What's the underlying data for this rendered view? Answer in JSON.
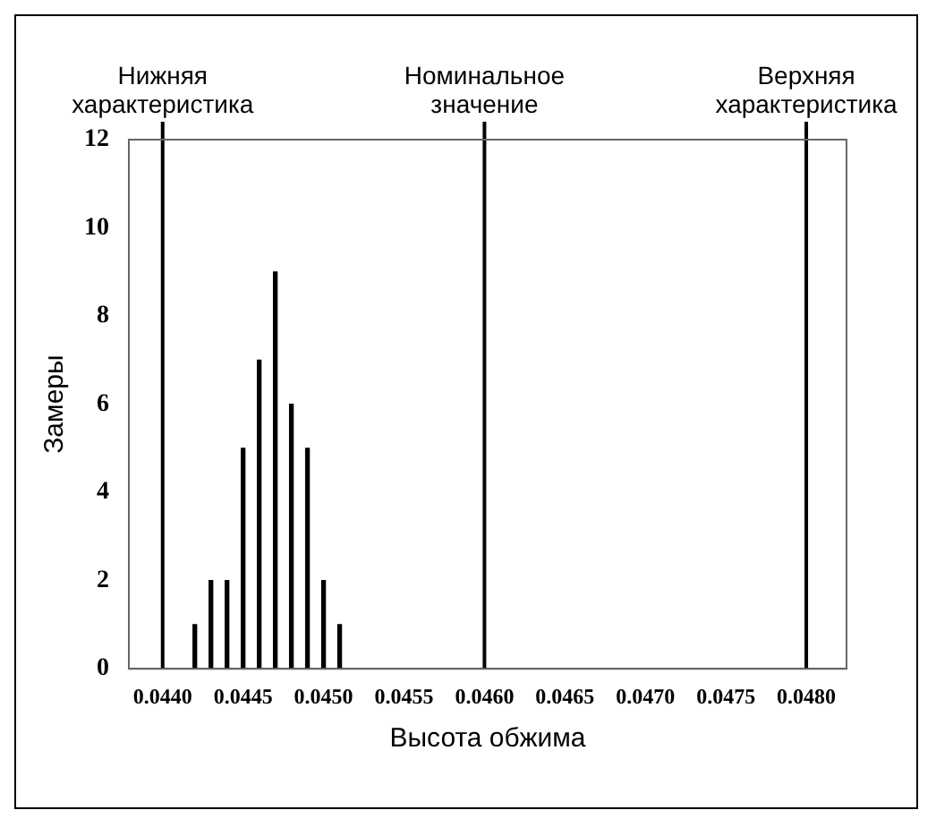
{
  "chart_data": {
    "type": "bar",
    "xlabel": "Высота обжима",
    "ylabel": "Замеры",
    "x": [
      0.0442,
      0.0443,
      0.0444,
      0.0445,
      0.0446,
      0.0447,
      0.0448,
      0.0449,
      0.045,
      0.0451
    ],
    "values": [
      1,
      2,
      2,
      5,
      7,
      9,
      6,
      5,
      2,
      1
    ],
    "color": "#000000",
    "xlim": [
      0.04379,
      0.04825
    ],
    "xticks": [
      {
        "value": 0.044,
        "label": "0.0440"
      },
      {
        "value": 0.0445,
        "label": "0.0445"
      },
      {
        "value": 0.045,
        "label": "0.0450"
      },
      {
        "value": 0.0455,
        "label": "0.0455"
      },
      {
        "value": 0.046,
        "label": "0.0460"
      },
      {
        "value": 0.0465,
        "label": "0.0465"
      },
      {
        "value": 0.047,
        "label": "0.0470"
      },
      {
        "value": 0.0475,
        "label": "0.0475"
      },
      {
        "value": 0.048,
        "label": "0.0480"
      }
    ],
    "ylim": [
      0,
      12
    ],
    "yticks": [
      0,
      2,
      4,
      6,
      8,
      10,
      12
    ],
    "grid": false,
    "legend": false,
    "ref_lines": [
      {
        "axis": "x",
        "value": 0.044,
        "label": "Нижняя характеристика",
        "color": "#000000"
      },
      {
        "axis": "x",
        "value": 0.046,
        "label": "Номинальное значение",
        "color": "#000000"
      },
      {
        "axis": "x",
        "value": 0.048,
        "label": "Верхняя характеристика",
        "color": "#000000"
      }
    ]
  }
}
